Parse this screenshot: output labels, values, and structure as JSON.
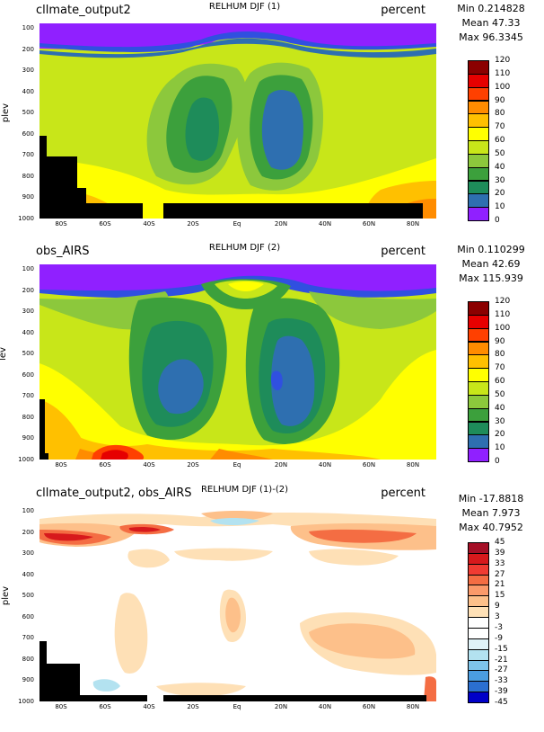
{
  "chart_data": [
    {
      "type": "heatmap",
      "title": "RELHUM DJF (1)",
      "left_label": "cllmate_output2",
      "units": "percent",
      "ylabel": "plev",
      "stats": {
        "min": "Min 0.214828",
        "mean": "Mean 47.33",
        "max": "Max 96.3345"
      },
      "yticks": [
        "100",
        "200",
        "300",
        "400",
        "500",
        "600",
        "700",
        "800",
        "900",
        "1000"
      ],
      "xticks": [
        "80S",
        "60S",
        "40S",
        "20S",
        "Eq",
        "20N",
        "40N",
        "60N",
        "80N"
      ],
      "colorbar_levels": [
        "120",
        "110",
        "100",
        "90",
        "80",
        "70",
        "60",
        "50",
        "40",
        "30",
        "20",
        "10",
        "0"
      ],
      "colorbar_colors": [
        "#8b0000",
        "#e60000",
        "#ff4000",
        "#ff8c00",
        "#ffc000",
        "#ffff00",
        "#c8e619",
        "#8cc83c",
        "#3ca03c",
        "#1e8c5a",
        "#2e6fb0",
        "#3050e0",
        "#9020ff"
      ]
    },
    {
      "type": "heatmap",
      "title": "RELHUM DJF (2)",
      "left_label": "obs_AIRS",
      "units": "percent",
      "ylabel": "lev",
      "stats": {
        "min": "Min 0.110299",
        "mean": "Mean 42.69",
        "max": "Max 115.939"
      },
      "yticks": [
        "100",
        "200",
        "300",
        "400",
        "500",
        "600",
        "700",
        "800",
        "900",
        "1000"
      ],
      "xticks": [
        "80S",
        "60S",
        "40S",
        "20S",
        "Eq",
        "20N",
        "40N",
        "60N",
        "80N"
      ],
      "colorbar_levels": [
        "120",
        "110",
        "100",
        "90",
        "80",
        "70",
        "60",
        "50",
        "40",
        "30",
        "20",
        "10",
        "0"
      ],
      "colorbar_colors": [
        "#8b0000",
        "#e60000",
        "#ff4000",
        "#ff8c00",
        "#ffc000",
        "#ffff00",
        "#c8e619",
        "#8cc83c",
        "#3ca03c",
        "#1e8c5a",
        "#2e6fb0",
        "#3050e0",
        "#9020ff"
      ]
    },
    {
      "type": "heatmap",
      "title": "RELHUM DJF (1)-(2)",
      "left_label": "cllmate_output2, obs_AIRS",
      "units": "percent",
      "ylabel": "plev",
      "stats": {
        "min": "Min -17.8818",
        "mean": "Mean 7.973",
        "max": "Max 40.7952"
      },
      "yticks": [
        "100",
        "200",
        "300",
        "400",
        "500",
        "600",
        "700",
        "800",
        "900",
        "1000"
      ],
      "xticks": [
        "80S",
        "60S",
        "40S",
        "20S",
        "Eq",
        "20N",
        "40N",
        "60N",
        "80N"
      ],
      "colorbar_levels": [
        "45",
        "39",
        "33",
        "27",
        "21",
        "15",
        "9",
        "3",
        "-3",
        "-9",
        "-15",
        "-21",
        "-27",
        "-33",
        "-39",
        "-45"
      ],
      "colorbar_colors": [
        "#a50f26",
        "#d7191c",
        "#f03b32",
        "#f46d43",
        "#fb9a6a",
        "#fdc08a",
        "#fee0b6",
        "#ffffff",
        "#ffffff",
        "#e0f3f8",
        "#b3e2f0",
        "#7ec4ea",
        "#4b9de0",
        "#2b6fd0",
        "#1440c0",
        "#0000c8"
      ]
    }
  ]
}
